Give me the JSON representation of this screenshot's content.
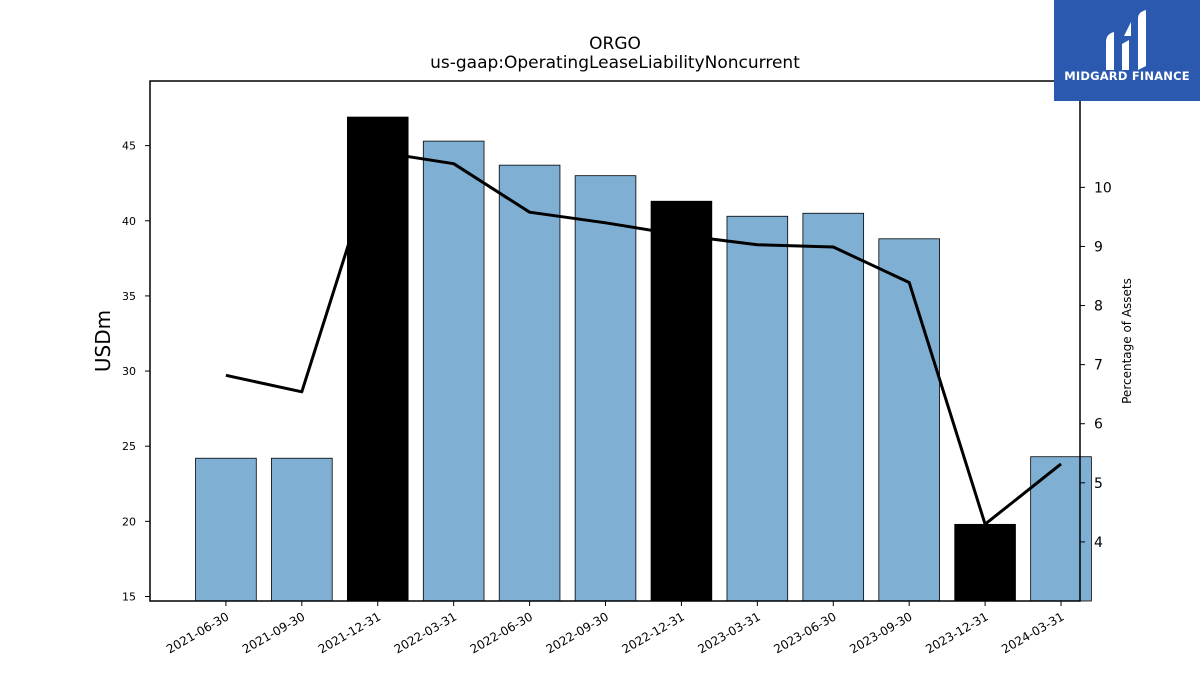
{
  "brand": {
    "name": "MIDGARD FINANCE",
    "color": "#2b59b0"
  },
  "chart_data": {
    "type": "bar",
    "title": "ORGO",
    "subtitle": "us-gaap:OperatingLeaseLiabilityNoncurrent",
    "ylabel": "USDm",
    "y2label": "Percentage of Assets",
    "ylim": [
      14.7,
      49.3
    ],
    "y2lim": [
      3.0,
      11.8
    ],
    "yticks": [
      15,
      20,
      25,
      30,
      35,
      40,
      45
    ],
    "y2ticks": [
      4,
      5,
      6,
      7,
      8,
      9,
      10
    ],
    "categories": [
      "2021-06-30",
      "2021-09-30",
      "2021-12-31",
      "2022-03-31",
      "2022-06-30",
      "2022-09-30",
      "2022-12-31",
      "2023-03-31",
      "2023-06-30",
      "2023-09-30",
      "2023-12-31",
      "2024-03-31"
    ],
    "series": [
      {
        "type": "bar",
        "axis": "left",
        "values": [
          24.2,
          24.2,
          46.9,
          45.3,
          43.7,
          43.0,
          41.3,
          40.3,
          40.5,
          38.8,
          19.8,
          24.3
        ],
        "colors": [
          "#7fb0d4",
          "#7fb0d4",
          "#000000",
          "#7fb0d4",
          "#7fb0d4",
          "#7fb0d4",
          "#000000",
          "#7fb0d4",
          "#7fb0d4",
          "#7fb0d4",
          "#000000",
          "#7fb0d4"
        ]
      },
      {
        "type": "line",
        "axis": "right",
        "color": "#000000",
        "values": [
          6.82,
          6.54,
          10.6,
          10.4,
          9.58,
          9.4,
          9.19,
          9.03,
          8.99,
          8.39,
          4.3,
          5.32
        ]
      }
    ]
  }
}
